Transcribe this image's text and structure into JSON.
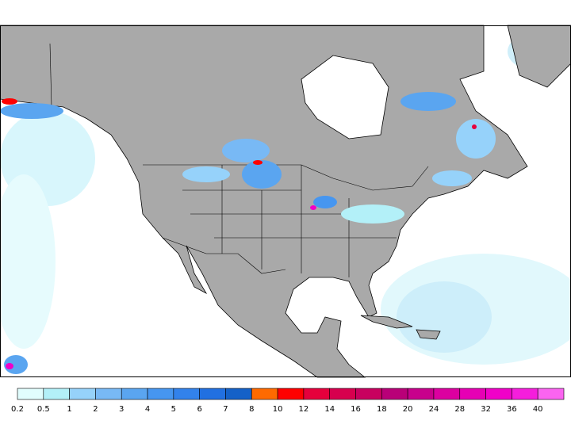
{
  "legend": {
    "labels": [
      "0.2",
      "0.5",
      "1",
      "2",
      "3",
      "4",
      "5",
      "6",
      "7",
      "8",
      "10",
      "12",
      "14",
      "16",
      "18",
      "20",
      "24",
      "28",
      "32",
      "36",
      "40"
    ],
    "colors": [
      "#e1fdfd",
      "#b3f0f8",
      "#96d2fa",
      "#78b9f5",
      "#5aa5f0",
      "#4696f0",
      "#3282eb",
      "#2170e1",
      "#1461c8",
      "#ff6a00",
      "#ff0000",
      "#e6003c",
      "#d7004e",
      "#c8005f",
      "#b90078",
      "#c8008c",
      "#dc00a0",
      "#e600b4",
      "#f000c8",
      "#f51edc",
      "#fa64f0"
    ]
  }
}
